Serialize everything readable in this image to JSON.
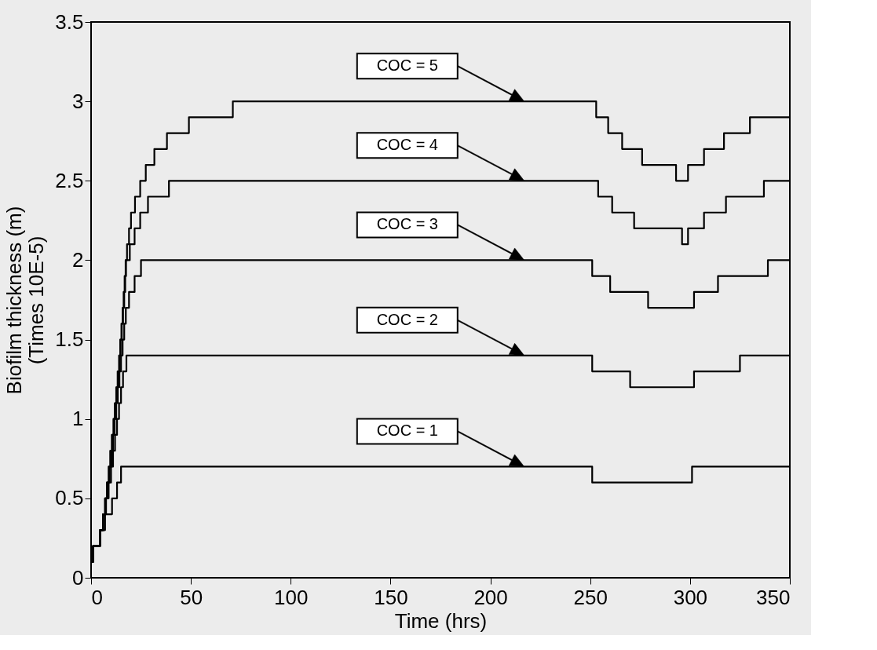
{
  "chart_data": {
    "type": "step",
    "xlabel": "Time (hrs)",
    "ylabel": "Biofilm thickness (m)\n(Times 10E-5)",
    "xlim": [
      0,
      350
    ],
    "xticks": [
      0,
      50,
      100,
      150,
      200,
      250,
      300,
      350
    ],
    "ylim": [
      0,
      3.5
    ],
    "yticks": [
      0,
      0.5,
      1,
      1.5,
      2,
      2.5,
      3,
      3.5
    ],
    "grid": false,
    "legend": false,
    "marker": "none",
    "line_style": "solid",
    "series": [
      {
        "name": "COC = 1",
        "color": "#000000",
        "x": [
          0,
          1,
          4.5,
          7,
          10.5,
          13,
          15,
          251,
          301,
          350
        ],
        "values": [
          0.1,
          0.2,
          0.3,
          0.4,
          0.5,
          0.6,
          0.7,
          0.6,
          0.7,
          0.7
        ]
      },
      {
        "name": "COC = 2",
        "color": "#000000",
        "x": [
          0,
          1,
          4.5,
          6,
          7.5,
          8.8,
          10,
          11,
          12,
          13,
          14,
          15,
          16,
          17.7,
          251,
          270,
          302,
          325,
          350
        ],
        "values": [
          0.1,
          0.2,
          0.3,
          0.4,
          0.5,
          0.6,
          0.7,
          0.8,
          0.9,
          1.0,
          1.1,
          1.2,
          1.3,
          1.4,
          1.3,
          1.2,
          1.3,
          1.4,
          1.4
        ]
      },
      {
        "name": "COC = 3",
        "color": "#000000",
        "x": [
          0,
          1,
          4.5,
          6,
          7.2,
          8.3,
          9.3,
          10.2,
          11,
          11.8,
          12.6,
          13.4,
          14.2,
          15,
          15.8,
          16.6,
          17.4,
          19,
          21.8,
          25,
          251,
          260,
          279,
          302,
          314,
          339,
          350
        ],
        "values": [
          0.1,
          0.2,
          0.3,
          0.4,
          0.5,
          0.6,
          0.7,
          0.8,
          0.9,
          1.0,
          1.1,
          1.2,
          1.3,
          1.4,
          1.5,
          1.6,
          1.7,
          1.8,
          1.9,
          2.0,
          1.9,
          1.8,
          1.7,
          1.8,
          1.9,
          2.0,
          2.0
        ]
      },
      {
        "name": "COC = 4",
        "color": "#000000",
        "x": [
          0,
          1,
          4.5,
          6,
          7,
          8,
          9,
          9.8,
          10.6,
          11.4,
          12.1,
          12.8,
          13.5,
          14.2,
          14.8,
          15.4,
          16,
          16.6,
          17.1,
          17.5,
          19.4,
          21.8,
          24.6,
          28.5,
          39,
          254,
          261,
          272,
          296,
          299,
          307,
          318,
          337,
          350
        ],
        "values": [
          0.1,
          0.2,
          0.3,
          0.4,
          0.5,
          0.6,
          0.7,
          0.8,
          0.9,
          1.0,
          1.1,
          1.2,
          1.3,
          1.4,
          1.5,
          1.6,
          1.7,
          1.8,
          1.9,
          2.0,
          2.1,
          2.2,
          2.3,
          2.4,
          2.5,
          2.4,
          2.3,
          2.2,
          2.1,
          2.2,
          2.3,
          2.4,
          2.5,
          2.5
        ]
      },
      {
        "name": "COC = 5",
        "color": "#000000",
        "x": [
          0,
          1,
          4.5,
          6,
          7,
          7.9,
          8.8,
          9.6,
          10.4,
          11.2,
          11.9,
          12.6,
          13.3,
          14,
          14.6,
          15.2,
          15.8,
          16.3,
          16.8,
          17.3,
          18,
          19,
          20,
          22,
          24.6,
          27.4,
          31.7,
          38,
          49,
          71,
          253,
          259,
          266,
          276,
          293,
          299,
          307,
          317,
          330,
          350
        ],
        "values": [
          0.1,
          0.2,
          0.3,
          0.4,
          0.5,
          0.6,
          0.7,
          0.8,
          0.9,
          1.0,
          1.1,
          1.2,
          1.3,
          1.4,
          1.5,
          1.6,
          1.7,
          1.8,
          1.9,
          2.0,
          2.1,
          2.2,
          2.3,
          2.4,
          2.5,
          2.6,
          2.7,
          2.8,
          2.9,
          3.0,
          2.9,
          2.8,
          2.7,
          2.6,
          2.5,
          2.6,
          2.7,
          2.8,
          2.9,
          2.9
        ]
      }
    ]
  }
}
